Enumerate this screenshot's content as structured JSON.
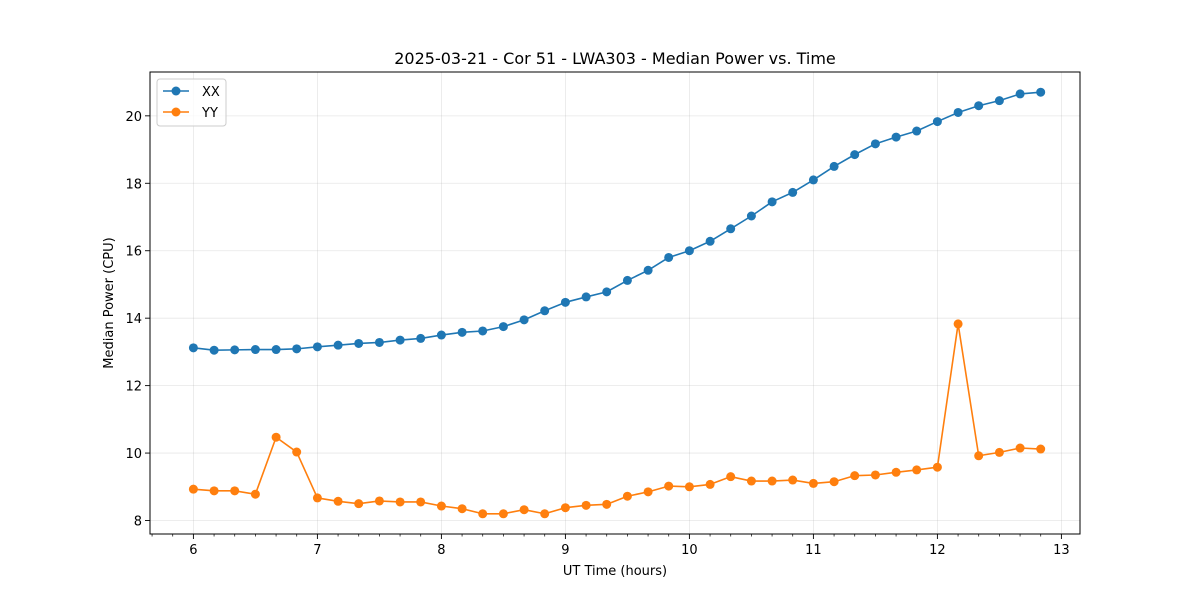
{
  "chart_data": {
    "type": "line",
    "title": "2025-03-21 - Cor 51 - LWA303 - Median Power vs. Time",
    "xlabel": "UT Time (hours)",
    "ylabel": "Median Power (CPU)",
    "xlim": [
      5.65,
      13.15
    ],
    "ylim": [
      7.6,
      21.3
    ],
    "xticks": [
      6,
      7,
      8,
      9,
      10,
      11,
      12,
      13
    ],
    "yticks": [
      8,
      10,
      12,
      14,
      16,
      18,
      20
    ],
    "grid": true,
    "legend_position": "top-left",
    "x": [
      6.0,
      6.167,
      6.333,
      6.5,
      6.667,
      6.833,
      7.0,
      7.167,
      7.333,
      7.5,
      7.667,
      7.833,
      8.0,
      8.167,
      8.333,
      8.5,
      8.667,
      8.833,
      9.0,
      9.167,
      9.333,
      9.5,
      9.667,
      9.833,
      10.0,
      10.167,
      10.333,
      10.5,
      10.667,
      10.833,
      11.0,
      11.167,
      11.333,
      11.5,
      11.667,
      11.833,
      12.0,
      12.167,
      12.333,
      12.5,
      12.667,
      12.833
    ],
    "series": [
      {
        "name": "XX",
        "color": "#1f77b4",
        "values": [
          13.12,
          13.05,
          13.06,
          13.07,
          13.07,
          13.09,
          13.15,
          13.2,
          13.25,
          13.28,
          13.35,
          13.4,
          13.5,
          13.58,
          13.62,
          13.75,
          13.95,
          14.22,
          14.47,
          14.63,
          14.78,
          15.12,
          15.42,
          15.8,
          16.0,
          16.28,
          16.65,
          17.03,
          17.45,
          17.73,
          18.1,
          18.5,
          18.85,
          19.17,
          19.37,
          19.55,
          19.83,
          20.1,
          20.3,
          20.45,
          20.65,
          20.7
        ]
      },
      {
        "name": "YY",
        "color": "#ff7f0e",
        "values": [
          8.93,
          8.88,
          8.88,
          8.78,
          10.47,
          10.03,
          8.67,
          8.57,
          8.5,
          8.58,
          8.55,
          8.55,
          8.43,
          8.35,
          8.2,
          8.2,
          8.32,
          8.2,
          8.38,
          8.45,
          8.48,
          8.72,
          8.85,
          9.02,
          9.0,
          9.07,
          9.3,
          9.17,
          9.17,
          9.2,
          9.1,
          9.15,
          9.33,
          9.35,
          9.43,
          9.5,
          9.58,
          13.83,
          9.92,
          10.02,
          10.15,
          10.12
        ]
      }
    ]
  }
}
